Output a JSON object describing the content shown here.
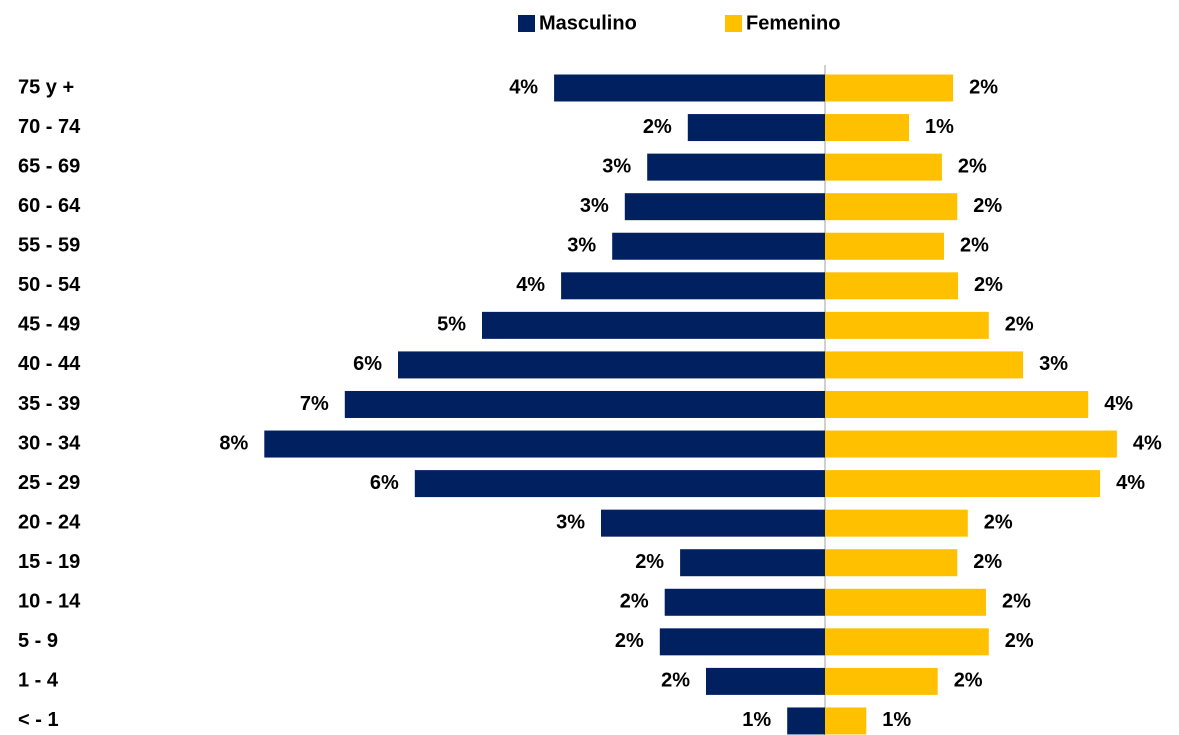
{
  "chart_data": {
    "type": "pyramid",
    "categories": [
      "75 y +",
      "70 - 74",
      "65 - 69",
      "60 - 64",
      "55 - 59",
      "50 - 54",
      "45 - 49",
      "40 - 44",
      "35 - 39",
      "30 - 34",
      "25 - 29",
      "20 - 24",
      "15 - 19",
      "10 - 14",
      "5 - 9",
      "1 - 4",
      "< - 1"
    ],
    "series": [
      {
        "name": "Masculino",
        "color": "#002060",
        "values": [
          3.87,
          1.96,
          2.54,
          2.86,
          3.04,
          3.77,
          4.9,
          6.1,
          6.86,
          8.01,
          5.86,
          3.2,
          2.07,
          2.29,
          2.36,
          1.7,
          0.54
        ],
        "value_labels": [
          "4%",
          "2%",
          "3%",
          "3%",
          "3%",
          "4%",
          "5%",
          "6%",
          "7%",
          "8%",
          "6%",
          "3%",
          "2%",
          "2%",
          "2%",
          "2%",
          "1%"
        ]
      },
      {
        "name": "Femenino",
        "color": "#ffc000",
        "values": [
          1.83,
          1.2,
          1.67,
          1.89,
          1.7,
          1.9,
          2.34,
          2.83,
          3.76,
          4.17,
          3.93,
          2.04,
          1.89,
          2.3,
          2.34,
          1.61,
          0.59
        ],
        "value_labels": [
          "2%",
          "1%",
          "2%",
          "2%",
          "2%",
          "2%",
          "2%",
          "3%",
          "4%",
          "4%",
          "4%",
          "2%",
          "2%",
          "2%",
          "2%",
          "2%",
          "1%"
        ]
      }
    ],
    "legend": "top"
  }
}
